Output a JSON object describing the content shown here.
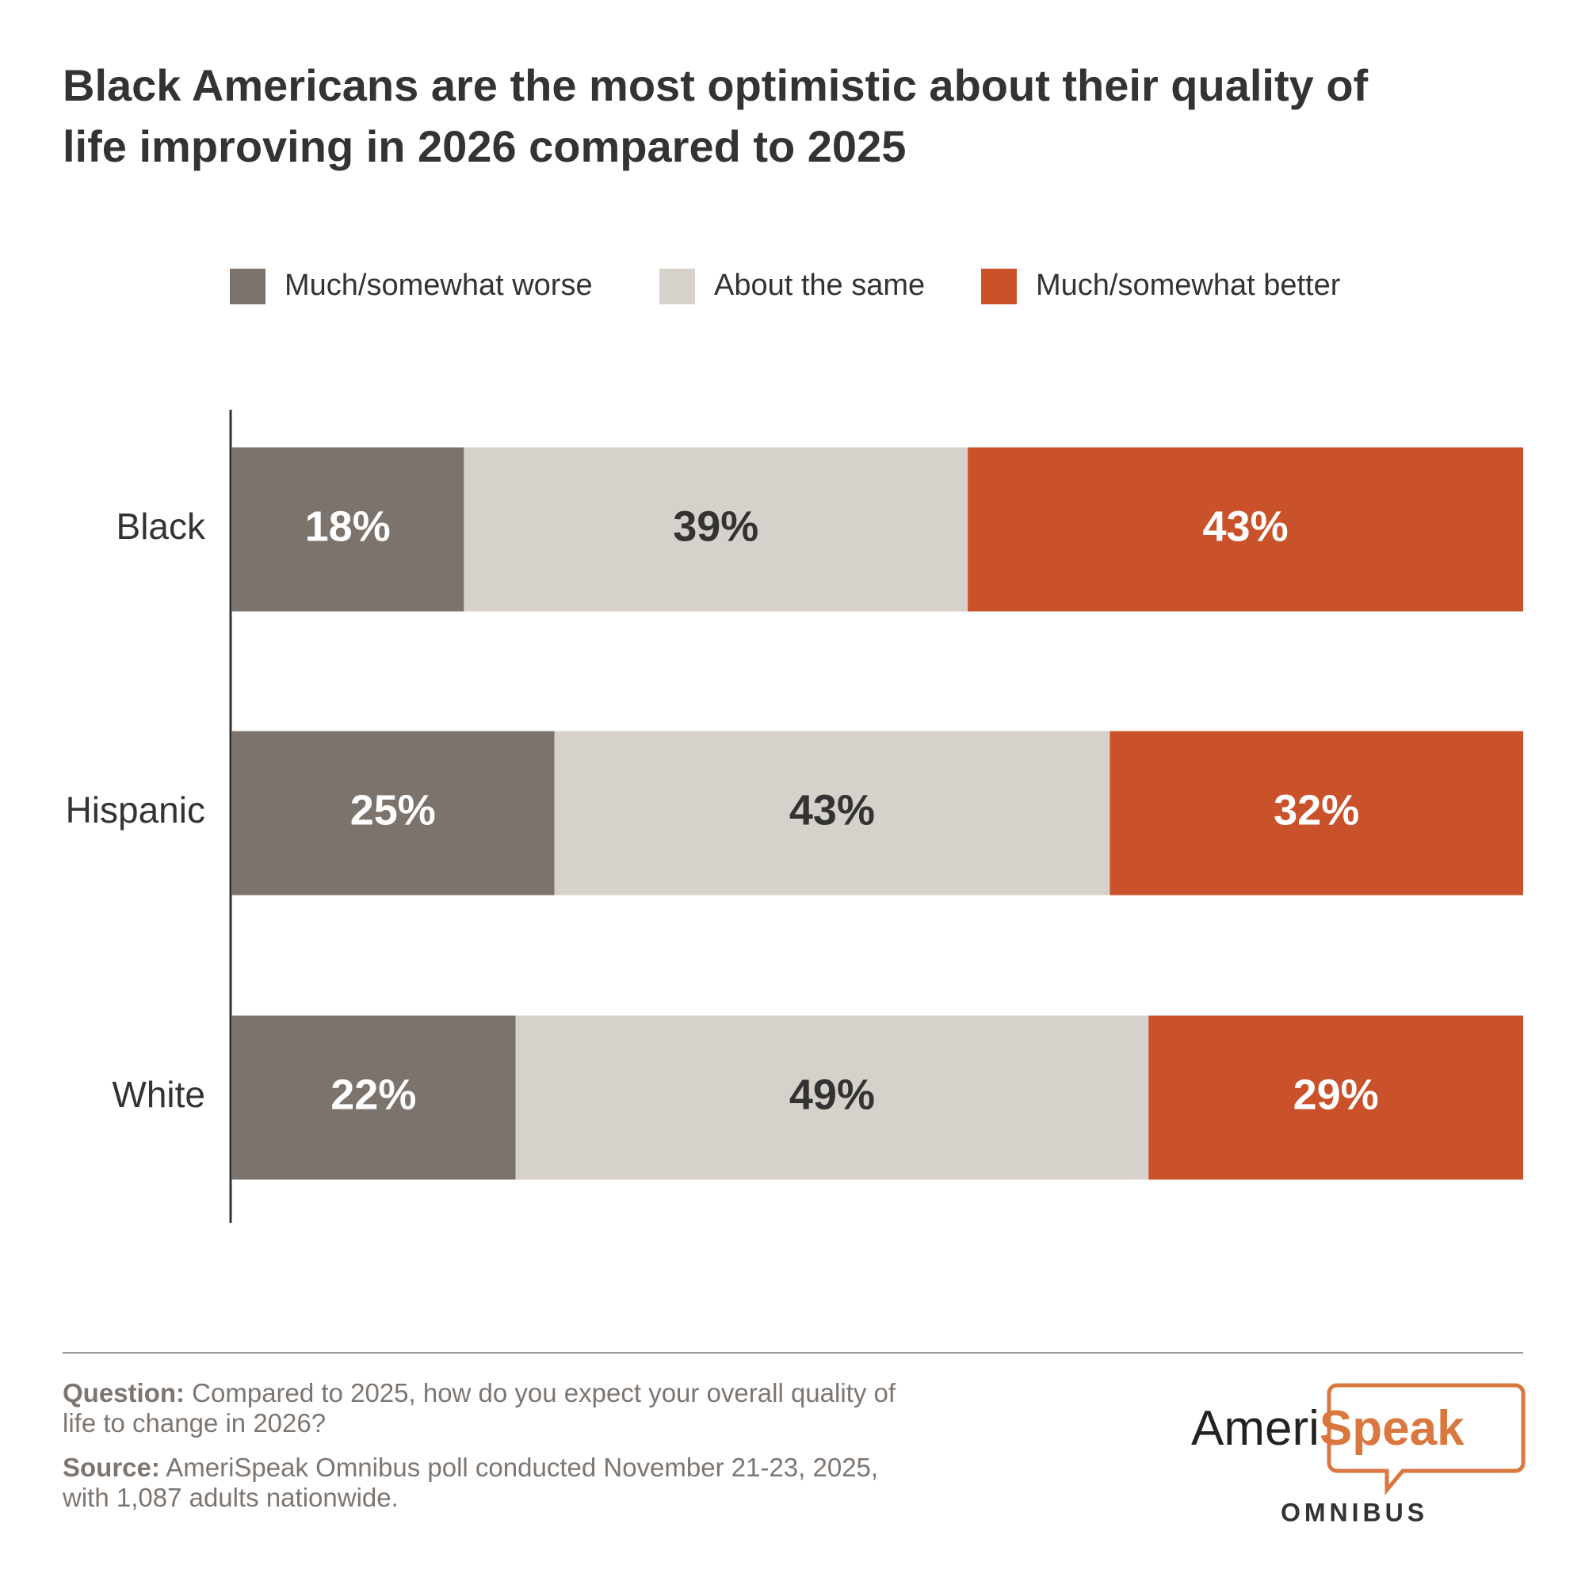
{
  "chart_data": {
    "type": "stacked-bar-horizontal",
    "title": "Black Americans are the most optimistic about their quality of life improving in 2026 compared to 2025",
    "categories": [
      "Black",
      "Hispanic",
      "White"
    ],
    "series": [
      {
        "name": "Much/somewhat worse",
        "color": "#7c736d",
        "values": [
          18,
          25,
          22
        ],
        "value_labels": [
          "18%",
          "25%",
          "22%"
        ]
      },
      {
        "name": "About the same",
        "color": "#d6d1cb",
        "values": [
          39,
          43,
          49
        ],
        "value_labels": [
          "39%",
          "43%",
          "49%"
        ]
      },
      {
        "name": "Much/somewhat better",
        "color": "#c9522a",
        "values": [
          43,
          32,
          29
        ],
        "value_labels": [
          "43%",
          "32%",
          "29%"
        ]
      }
    ],
    "xlim": [
      0,
      100
    ],
    "legend": "top",
    "notes": {
      "question_label": "Question:",
      "question": "Compared to 2025, how do you expect your overall quality of life to change in 2026?",
      "source_label": "Source:",
      "source": "AmeriSpeak Omnibus poll conducted November 21-23, 2025, with 1,087 adults nationwide."
    },
    "logo": {
      "part1": "Ameri",
      "part2": "Speak",
      "subtitle": "OMNIBUS"
    }
  }
}
